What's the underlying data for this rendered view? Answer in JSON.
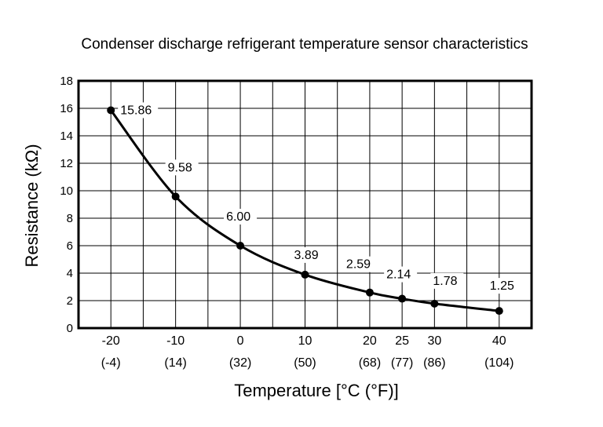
{
  "chart_data": {
    "type": "line",
    "title": "Condenser discharge refrigerant temperature sensor characteristics",
    "xlabel": "Temperature [°C (°F)]",
    "ylabel": "Resistance (kΩ)",
    "xlim": [
      -25,
      45
    ],
    "ylim": [
      0,
      18
    ],
    "grid": true,
    "yticks": [
      0,
      2,
      4,
      6,
      8,
      10,
      12,
      14,
      16,
      18
    ],
    "xticks": [
      {
        "c": -20,
        "c_label": "-20",
        "f_label": "(-4)"
      },
      {
        "c": -10,
        "c_label": "-10",
        "f_label": "(14)"
      },
      {
        "c": 0,
        "c_label": "0",
        "f_label": "(32)"
      },
      {
        "c": 10,
        "c_label": "10",
        "f_label": "(50)"
      },
      {
        "c": 20,
        "c_label": "20",
        "f_label": "(68)"
      },
      {
        "c": 25,
        "c_label": "25",
        "f_label": "(77)"
      },
      {
        "c": 30,
        "c_label": "30",
        "f_label": "(86)"
      },
      {
        "c": 40,
        "c_label": "40",
        "f_label": "(104)"
      }
    ],
    "points": [
      {
        "x": -20,
        "y": 15.86,
        "label": "15.86"
      },
      {
        "x": -10,
        "y": 9.58,
        "label": "9.58"
      },
      {
        "x": 0,
        "y": 6.0,
        "label": "6.00"
      },
      {
        "x": 10,
        "y": 3.89,
        "label": "3.89"
      },
      {
        "x": 20,
        "y": 2.59,
        "label": "2.59"
      },
      {
        "x": 25,
        "y": 2.14,
        "label": "2.14"
      },
      {
        "x": 30,
        "y": 1.78,
        "label": "1.78"
      },
      {
        "x": 40,
        "y": 1.25,
        "label": "1.25"
      }
    ]
  }
}
